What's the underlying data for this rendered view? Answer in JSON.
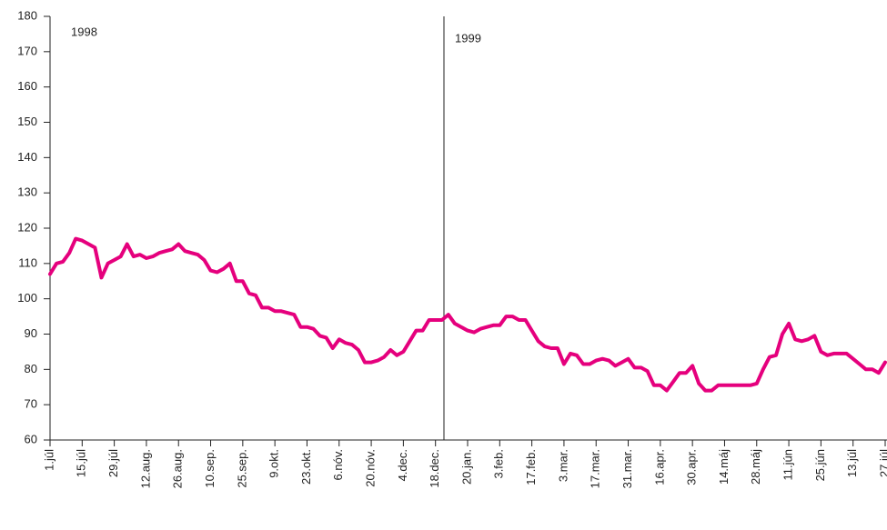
{
  "chart_data": {
    "type": "line",
    "annotations": [
      "1998",
      "1999"
    ],
    "categories": [
      "1.júl",
      null,
      null,
      null,
      null,
      "15.júl",
      null,
      null,
      null,
      null,
      "29.júl",
      null,
      null,
      null,
      null,
      "12.aug.",
      null,
      null,
      null,
      null,
      "26.aug.",
      null,
      null,
      null,
      null,
      "10.sep.",
      null,
      null,
      null,
      null,
      "25.sep.",
      null,
      null,
      null,
      null,
      "9.okt.",
      null,
      null,
      null,
      null,
      "23.okt.",
      null,
      null,
      null,
      null,
      "6.nóv.",
      null,
      null,
      null,
      null,
      "20.nóv.",
      null,
      null,
      null,
      null,
      "4.dec.",
      null,
      null,
      null,
      null,
      "18.dec.",
      null,
      null,
      null,
      null,
      "20.jan.",
      null,
      null,
      null,
      null,
      "3.feb.",
      null,
      null,
      null,
      null,
      "17.feb.",
      null,
      null,
      null,
      null,
      "3.mar.",
      null,
      null,
      null,
      null,
      "17.mar.",
      null,
      null,
      null,
      null,
      "31.mar.",
      null,
      null,
      null,
      null,
      "16.apr.",
      null,
      null,
      null,
      null,
      "30.apr.",
      null,
      null,
      null,
      null,
      "14.máj",
      null,
      null,
      null,
      null,
      "28.máj",
      null,
      null,
      null,
      null,
      "11.jún",
      null,
      null,
      null,
      null,
      "25.jún",
      null,
      null,
      null,
      null,
      "13.júl",
      null,
      null,
      null,
      null,
      "27.júl"
    ],
    "series": [
      {
        "color": "#e5007d",
        "values": [
          107,
          110,
          110.5,
          113,
          117,
          116.5,
          115.5,
          114.5,
          106,
          110,
          111,
          112,
          115.5,
          112,
          112.5,
          111.5,
          112,
          113,
          113.5,
          114,
          115.5,
          113.5,
          113,
          112.5,
          111,
          108,
          107.5,
          108.5,
          110,
          105,
          105,
          101.5,
          101,
          97.5,
          97.5,
          96.5,
          96.5,
          96,
          95.5,
          92,
          92,
          91.5,
          89.5,
          89,
          86,
          88.5,
          87.5,
          87,
          85.5,
          82,
          82,
          82.5,
          83.5,
          85.5,
          84,
          85,
          88,
          91,
          91,
          94,
          94,
          94,
          95.5,
          93,
          92,
          91,
          90.5,
          91.5,
          92,
          92.5,
          92.5,
          95,
          95,
          94,
          94,
          91,
          88,
          86.5,
          86,
          86,
          81.5,
          84.5,
          84,
          81.5,
          81.5,
          82.5,
          83,
          82.5,
          81,
          82,
          83,
          80.5,
          80.5,
          79.5,
          75.5,
          75.5,
          74,
          76.5,
          79,
          79,
          81,
          76,
          74,
          74,
          75.5,
          75.5,
          75.5,
          75.5,
          75.5,
          75.5,
          76,
          80,
          83.5,
          84,
          90,
          93,
          88.5,
          88,
          88.5,
          89.5,
          85,
          84,
          84.5,
          84.5,
          84.5,
          83,
          81.5,
          80,
          80,
          79,
          82
        ]
      }
    ],
    "ylim": [
      60,
      180
    ],
    "yticks": [
      60,
      70,
      80,
      90,
      100,
      110,
      120,
      130,
      140,
      150,
      160,
      170,
      180
    ]
  }
}
